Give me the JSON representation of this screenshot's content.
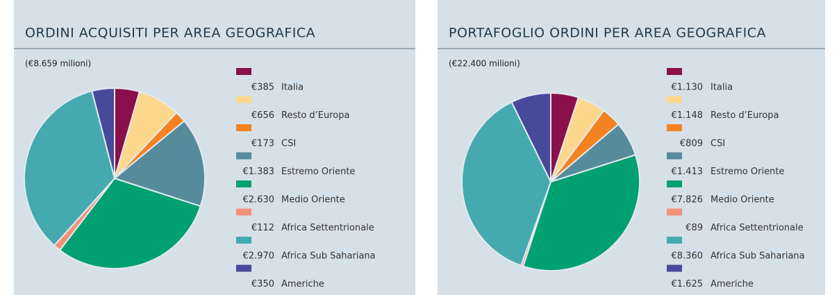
{
  "chart_data": [
    {
      "type": "pie",
      "title": "ORDINI ACQUISITI PER AREA GEOGRAFICA",
      "subtitle": "(€8.659 milioni)",
      "categories": [
        "Italia",
        "Resto d’Europa",
        "CSI",
        "Estremo Oriente",
        "Medio Oriente",
        "Africa Settentrionale",
        "Africa Sub Sahariana",
        "Americhe"
      ],
      "values": [
        385,
        656,
        173,
        1383,
        2630,
        112,
        2970,
        350
      ],
      "value_labels": [
        "€385",
        "€656",
        "€173",
        "€1.383",
        "€2.630",
        "€112",
        "€2.970",
        "€350"
      ],
      "colors": [
        "#8b0f4a",
        "#fdd88c",
        "#f58220",
        "#558b9a",
        "#00a070",
        "#f4907a",
        "#45aab0",
        "#474a9a"
      ]
    },
    {
      "type": "pie",
      "title": "PORTAFOGLIO ORDINI PER AREA GEOGRAFICA",
      "subtitle": "(€22.400 milioni)",
      "categories": [
        "Italia",
        "Resto d’Europa",
        "CSI",
        "Estremo Oriente",
        "Medio Oriente",
        "Africa Settentrionale",
        "Africa Sub Sahariana",
        "Americhe"
      ],
      "values": [
        1130,
        1148,
        809,
        1413,
        7826,
        89,
        8360,
        1625
      ],
      "value_labels": [
        "€1.130",
        "€1.148",
        "€809",
        "€1.413",
        "€7.826",
        "€89",
        "€8.360",
        "€1.625"
      ],
      "colors": [
        "#8b0f4a",
        "#fdd88c",
        "#f58220",
        "#558b9a",
        "#00a070",
        "#f4907a",
        "#45aab0",
        "#474a9a"
      ]
    }
  ]
}
